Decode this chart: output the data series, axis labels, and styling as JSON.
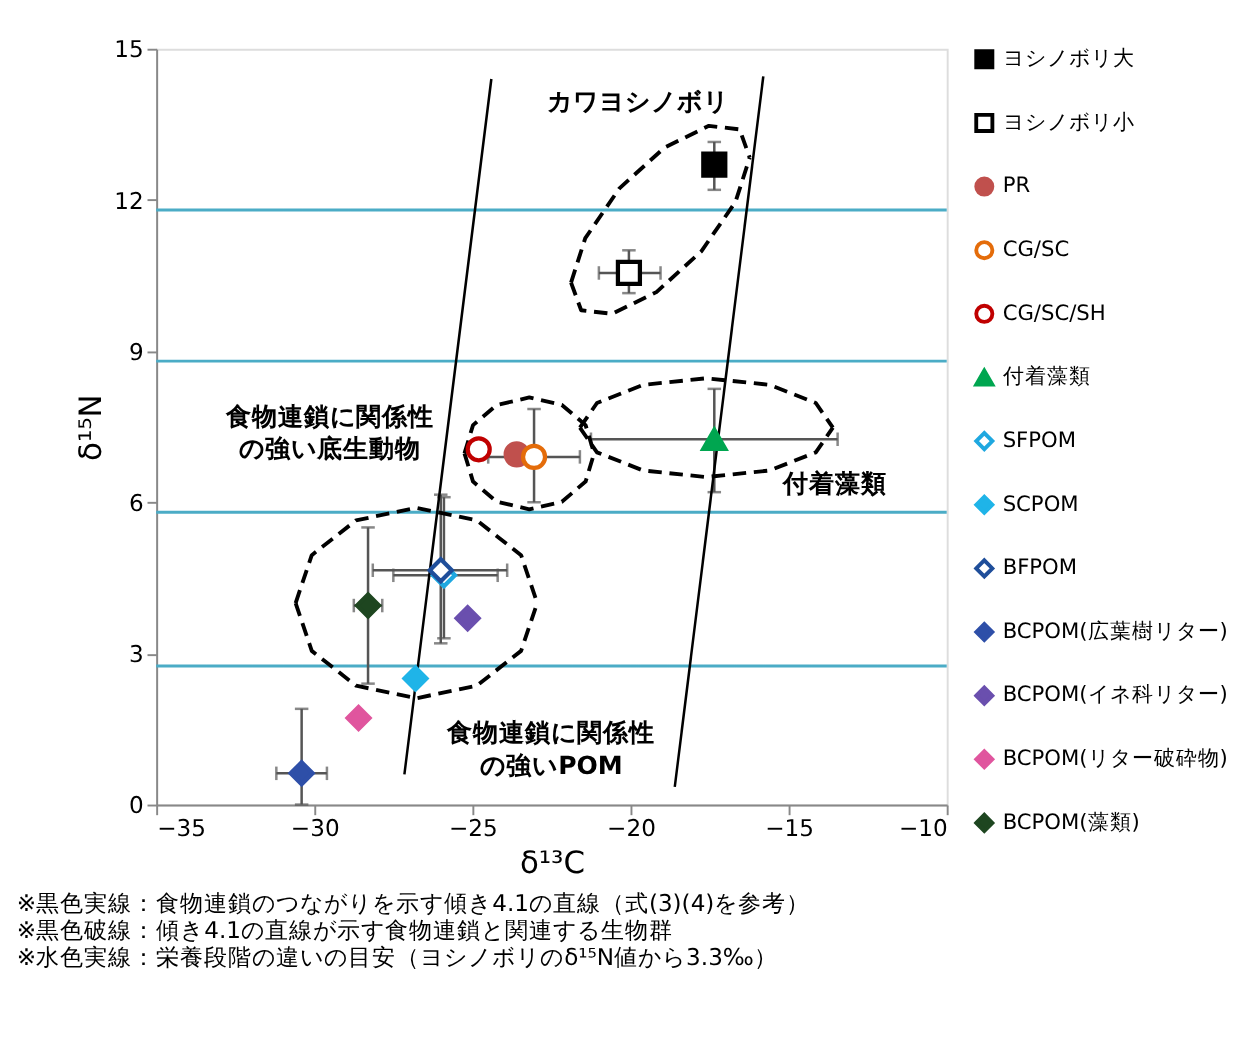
{
  "chart_data": {
    "type": "scatter",
    "xlabel": "δ¹³C",
    "ylabel": "δ¹⁵N",
    "xlim": [
      -35,
      -10
    ],
    "xticks": [
      -35,
      -30,
      -25,
      -20,
      -15,
      -10
    ],
    "ylim": [
      0,
      15
    ],
    "yticks": [
      0,
      3,
      6,
      9,
      12,
      15
    ],
    "grid": false,
    "legend": "right",
    "series": [
      {
        "name": "ヨシノボリ大",
        "color": "#000000",
        "marker": "square",
        "x": [
          -17.35
        ],
        "values": [
          12.7
        ],
        "errors": [
          [
            12.2,
            13.15
          ]
        ],
        "xerrors": [
          [
            -17.6,
            -17.1
          ]
        ]
      },
      {
        "name": "ヨシノボリ小",
        "color": "#000000",
        "marker": "square-open",
        "x": [
          -20.05
        ],
        "values": [
          10.55
        ],
        "errors": [
          [
            10.15,
            11.0
          ]
        ],
        "xerrors": [
          [
            -21.0,
            -19.05
          ]
        ]
      },
      {
        "name": "PR",
        "color": "#c0504d",
        "marker": "circle",
        "x": [
          -23.6
        ],
        "values": [
          6.95
        ]
      },
      {
        "name": "CG/SC",
        "color": "#e46c0a",
        "marker": "circle-open",
        "x": [
          -23.05
        ],
        "values": [
          6.9
        ],
        "errors": [
          [
            6.0,
            7.85
          ]
        ],
        "xerrors": [
          [
            -24.5,
            -21.6
          ]
        ]
      },
      {
        "name": "CG/SC/SH",
        "color": "#c00000",
        "marker": "circle-open",
        "x": [
          -24.8
        ],
        "values": [
          7.05
        ]
      },
      {
        "name": "付着藻類",
        "color": "#00a650",
        "marker": "triangle",
        "x": [
          -17.35
        ],
        "values": [
          7.25
        ],
        "errors": [
          [
            6.2,
            8.25
          ]
        ],
        "xerrors": [
          [
            -21.25,
            -13.45
          ]
        ]
      },
      {
        "name": "SFPOM",
        "color": "#1fa8e0",
        "marker": "diamond-open",
        "x": [
          -25.9
        ],
        "values": [
          4.55
        ],
        "errors": [
          [
            3.3,
            6.1
          ]
        ],
        "xerrors": [
          [
            -27.5,
            -24.2
          ]
        ]
      },
      {
        "name": "SCPOM",
        "color": "#1fb4e8",
        "marker": "diamond",
        "x": [
          -26.8
        ],
        "values": [
          2.5
        ]
      },
      {
        "name": "BFPOM",
        "color": "#1f4e9a",
        "marker": "diamond-open",
        "x": [
          -26.0
        ],
        "values": [
          4.65
        ],
        "errors": [
          [
            3.2,
            6.15
          ]
        ],
        "xerrors": [
          [
            -28.15,
            -23.9
          ]
        ]
      },
      {
        "name": "BCPOM(広葉樹リター)",
        "color": "#2e4fa8",
        "marker": "diamond",
        "x": [
          -30.4
        ],
        "values": [
          0.62
        ],
        "errors": [
          [
            0,
            1.9
          ]
        ],
        "xerrors": [
          [
            -31.2,
            -29.6
          ]
        ]
      },
      {
        "name": "BCPOM(イネ科リター)",
        "color": "#6a4fae",
        "marker": "diamond",
        "x": [
          -25.15
        ],
        "values": [
          3.7
        ]
      },
      {
        "name": "BCPOM(リター破砕物)",
        "color": "#e0559e",
        "marker": "diamond",
        "x": [
          -28.6
        ],
        "values": [
          1.72
        ]
      },
      {
        "name": "BCPOM(藻類)",
        "color": "#1e4620",
        "marker": "diamond",
        "x": [
          -28.3
        ],
        "values": [
          3.95
        ],
        "errors": [
          [
            2.4,
            5.5
          ]
        ],
        "xerrors": [
          [
            -28.75,
            -27.85
          ]
        ]
      },
      {
        "type": "line",
        "color": "#000000",
        "line_style": "solid",
        "x": [
          -27.15,
          -24.4
        ],
        "values": [
          0.6,
          14.4
        ]
      },
      {
        "type": "line",
        "color": "#000000",
        "line_style": "solid",
        "x": [
          -18.6,
          -15.8
        ],
        "values": [
          0.35,
          14.45
        ]
      },
      {
        "type": "line",
        "color": "#000000",
        "line_style": "dashed",
        "x": [
          -21.88,
          -21.43,
          -20.35,
          -18.92,
          -17.52,
          -16.55,
          -16.23
        ],
        "values": [
          10.36,
          11.24,
          12.23,
          13.04,
          13.47,
          13.4,
          12.84
        ]
      },
      {
        "type": "line",
        "color": "#000000",
        "line_style": "dashed",
        "x": [
          -21.88,
          -21.56,
          -20.58,
          -19.18,
          -17.76,
          -16.68,
          -16.23
        ],
        "values": [
          10.36,
          9.81,
          9.74,
          10.17,
          10.98,
          11.96,
          12.84
        ]
      },
      {
        "type": "line",
        "color": "#000000",
        "line_style": "dashed",
        "x": [
          -25.25,
          -24.98,
          -24.23,
          -23.2,
          -22.17,
          -21.42,
          -21.15
        ],
        "values": [
          6.97,
          7.53,
          7.93,
          8.08,
          7.93,
          7.53,
          6.97
        ]
      },
      {
        "type": "line",
        "color": "#000000",
        "line_style": "dashed",
        "x": [
          -25.25,
          -24.98,
          -24.23,
          -23.2,
          -22.17,
          -21.42,
          -21.15
        ],
        "values": [
          6.97,
          6.41,
          6.01,
          5.86,
          6.01,
          6.41,
          6.97
        ]
      },
      {
        "type": "line",
        "color": "#000000",
        "line_style": "dashed",
        "x": [
          -21.6,
          -21.06,
          -19.6,
          -17.6,
          -15.6,
          -14.14,
          -13.6
        ],
        "values": [
          7.48,
          7.97,
          8.33,
          8.46,
          8.33,
          7.97,
          7.48
        ]
      },
      {
        "type": "line",
        "color": "#000000",
        "line_style": "dashed",
        "x": [
          -21.6,
          -21.06,
          -19.6,
          -17.6,
          -15.6,
          -14.14,
          -13.6
        ],
        "values": [
          7.48,
          6.99,
          6.63,
          6.5,
          6.63,
          6.99,
          7.48
        ]
      },
      {
        "type": "line",
        "color": "#000000",
        "line_style": "dashed",
        "x": [
          -30.59,
          -30.08,
          -28.68,
          -26.77,
          -24.86,
          -23.46,
          -22.95
        ],
        "values": [
          4.0,
          4.95,
          5.64,
          5.89,
          5.64,
          4.95,
          4.0
        ]
      },
      {
        "type": "line",
        "color": "#000000",
        "line_style": "dashed",
        "x": [
          -30.59,
          -30.08,
          -28.68,
          -26.77,
          -24.86,
          -23.46,
          -22.95
        ],
        "values": [
          4.0,
          3.05,
          2.36,
          2.11,
          2.36,
          3.05,
          4.0
        ]
      }
    ],
    "ref_lines": [
      {
        "axis": "y",
        "value": 11.8,
        "color": "#4bacc6"
      },
      {
        "axis": "y",
        "value": 8.8,
        "color": "#4bacc6"
      },
      {
        "axis": "y",
        "value": 5.8,
        "color": "#4bacc6"
      },
      {
        "axis": "y",
        "value": 2.75,
        "color": "#4bacc6"
      }
    ],
    "annotations": [
      "カワヨシノボリ",
      "食物連鎖に関係性の強い底生動物",
      "付着藻類",
      "食物連鎖に関係性の強いPOM",
      "※黒色実線：食物連鎖のつながりを示す傾き4.1の直線（式(3)(4)を参考）",
      "※黒色破線：傾き4.1の直線が示す食物連鎖と関連する生物群",
      "※水色実線：栄養段階の違いの目安（ヨシノボリのδ¹⁵N値から3.3‰）"
    ]
  }
}
